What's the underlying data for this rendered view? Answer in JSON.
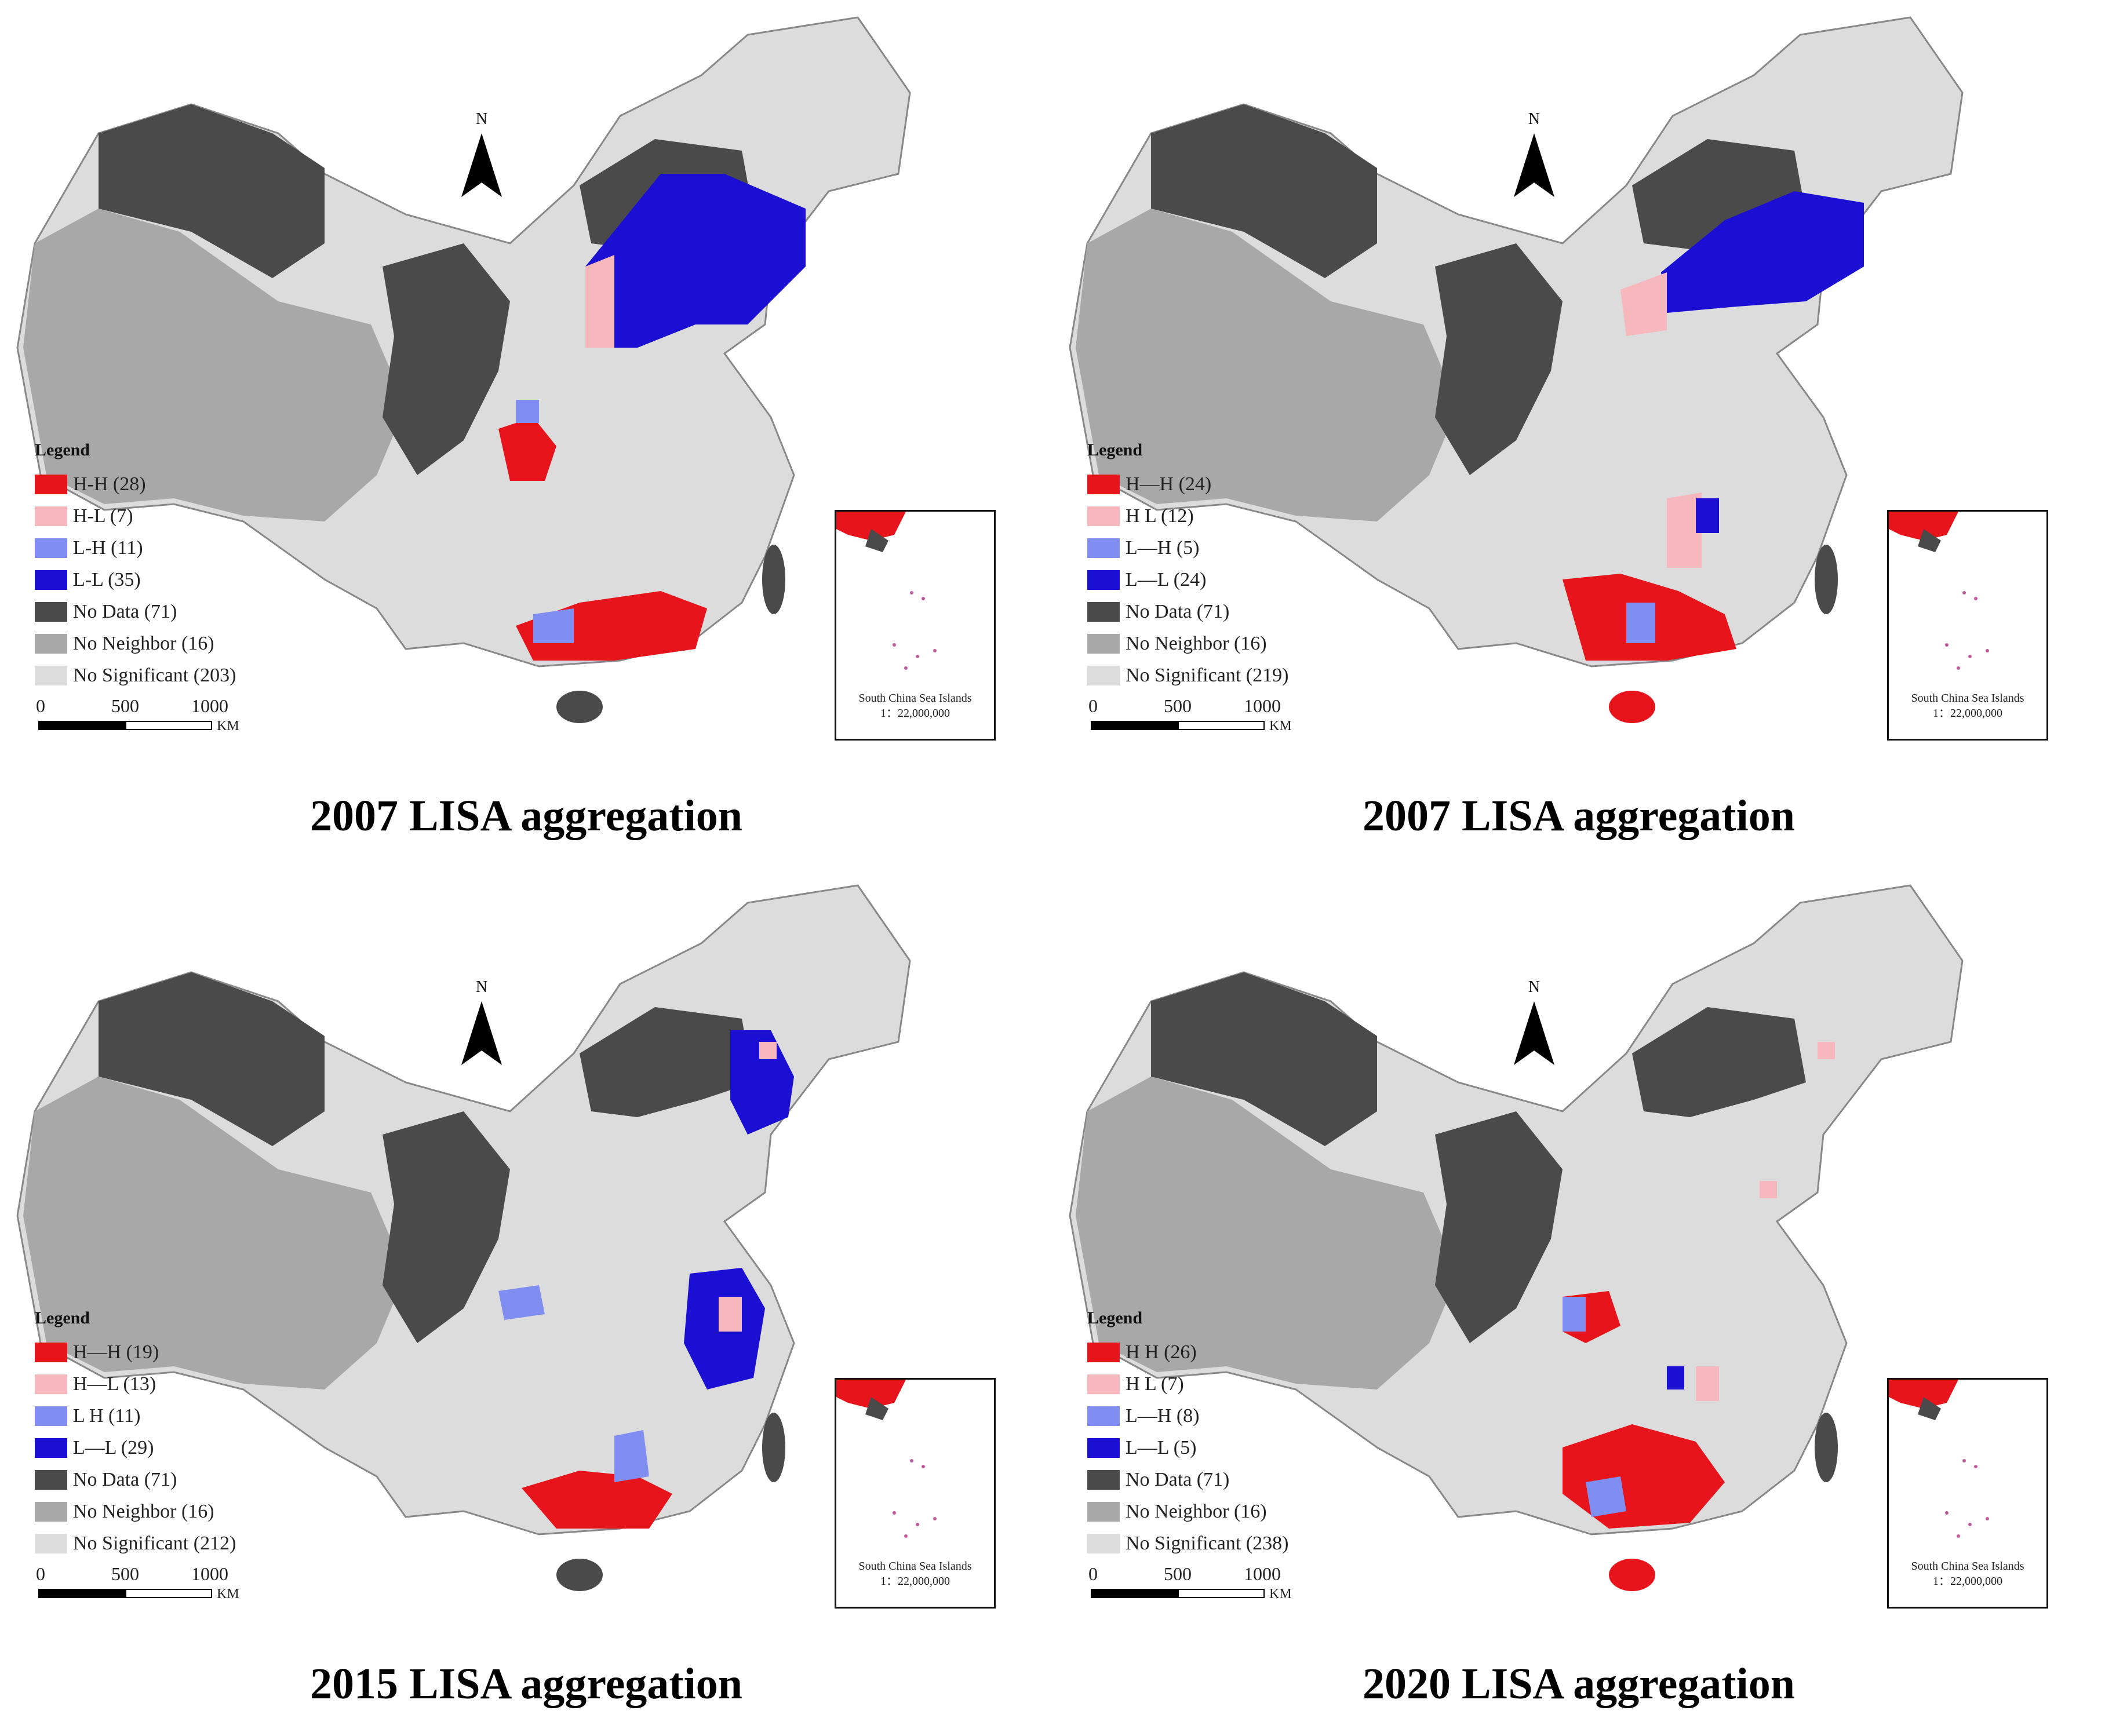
{
  "panels": [
    {
      "caption": "2007 LISA aggregation",
      "legend": {
        "title": "Legend",
        "items": [
          {
            "label": "H-H (28)",
            "color": "#e8141b"
          },
          {
            "label": "H-L (7)",
            "color": "#f6b8bc"
          },
          {
            "label": "L-H (11)",
            "color": "#7f8ef0"
          },
          {
            "label": "L-L (35)",
            "color": "#1a0fd2"
          },
          {
            "label": "No Data (71)",
            "color": "#4a4a4a"
          },
          {
            "label": "No Neighbor (16)",
            "color": "#a8a8a8"
          },
          {
            "label": "No Significant (203)",
            "color": "#dcdcdc"
          }
        ]
      },
      "scale": {
        "ticks": [
          "0",
          "500",
          "1000"
        ],
        "unit": "KM"
      },
      "north": "N",
      "inset": {
        "title": "South China Sea Islands",
        "ratio": "1：22,000,000"
      }
    },
    {
      "caption": "2007 LISA aggregation",
      "legend": {
        "title": "Legend",
        "items": [
          {
            "label": "H—H (24)",
            "color": "#e8141b"
          },
          {
            "label": "H L (12)",
            "color": "#f6b8bc"
          },
          {
            "label": "L—H (5)",
            "color": "#7f8ef0"
          },
          {
            "label": "L—L (24)",
            "color": "#1a0fd2"
          },
          {
            "label": "No Data (71)",
            "color": "#4a4a4a"
          },
          {
            "label": "No Neighbor (16)",
            "color": "#a8a8a8"
          },
          {
            "label": "No Significant (219)",
            "color": "#dcdcdc"
          }
        ]
      },
      "scale": {
        "ticks": [
          "0",
          "500",
          "1000"
        ],
        "unit": "KM"
      },
      "north": "N",
      "inset": {
        "title": "South China Sea Islands",
        "ratio": "1：22,000,000"
      }
    },
    {
      "caption": "2015 LISA aggregation",
      "legend": {
        "title": "Legend",
        "items": [
          {
            "label": "H—H (19)",
            "color": "#e8141b"
          },
          {
            "label": "H—L (13)",
            "color": "#f6b8bc"
          },
          {
            "label": "L H (11)",
            "color": "#7f8ef0"
          },
          {
            "label": "L—L (29)",
            "color": "#1a0fd2"
          },
          {
            "label": "No Data (71)",
            "color": "#4a4a4a"
          },
          {
            "label": "No Neighbor (16)",
            "color": "#a8a8a8"
          },
          {
            "label": "No Significant (212)",
            "color": "#dcdcdc"
          }
        ]
      },
      "scale": {
        "ticks": [
          "0",
          "500",
          "1000"
        ],
        "unit": "KM"
      },
      "north": "N",
      "inset": {
        "title": "South China Sea Islands",
        "ratio": "1：22,000,000"
      }
    },
    {
      "caption": "2020 LISA aggregation",
      "legend": {
        "title": "Legend",
        "items": [
          {
            "label": "H H (26)",
            "color": "#e8141b"
          },
          {
            "label": "H L (7)",
            "color": "#f6b8bc"
          },
          {
            "label": "L—H (8)",
            "color": "#7f8ef0"
          },
          {
            "label": "L—L (5)",
            "color": "#1a0fd2"
          },
          {
            "label": "No Data (71)",
            "color": "#4a4a4a"
          },
          {
            "label": "No Neighbor (16)",
            "color": "#a8a8a8"
          },
          {
            "label": "No Significant (238)",
            "color": "#dcdcdc"
          }
        ]
      },
      "scale": {
        "ticks": [
          "0",
          "500",
          "1000"
        ],
        "unit": "KM"
      },
      "north": "N",
      "inset": {
        "title": "South China Sea Islands",
        "ratio": "1：22,000,000"
      }
    }
  ]
}
